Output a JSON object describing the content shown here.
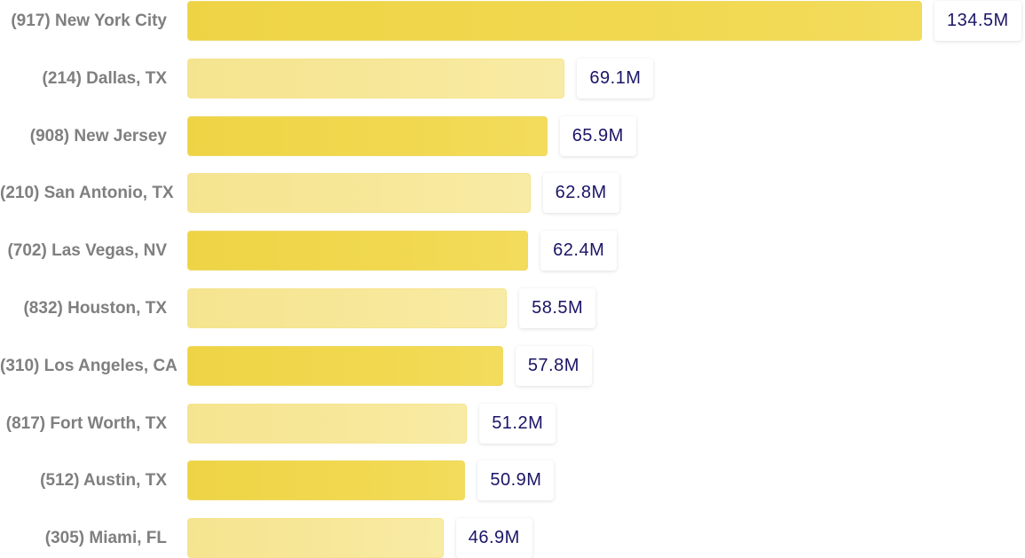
{
  "chart_data": {
    "type": "bar",
    "orientation": "horizontal",
    "title": "",
    "xlabel": "",
    "ylabel": "",
    "categories": [
      "(917) New York City",
      "(214) Dallas, TX",
      "(908) New Jersey",
      "(210) San Antonio, TX",
      "(702) Las Vegas, NV",
      "(832) Houston, TX",
      "(310) Los Angeles, CA",
      "(817) Fort Worth, TX",
      "(512) Austin, TX",
      "(305) Miami, FL"
    ],
    "values": [
      134.5,
      69.1,
      65.9,
      62.8,
      62.4,
      58.5,
      57.8,
      51.2,
      50.9,
      46.9
    ],
    "value_labels": [
      "134.5M",
      "69.1M",
      "65.9M",
      "62.8M",
      "62.4M",
      "58.5M",
      "57.8M",
      "51.2M",
      "50.9M",
      "46.9M"
    ],
    "xlim": [
      0,
      134.5
    ],
    "grid": false,
    "legend": "none",
    "colors": {
      "bar_dark": "#f0d64a",
      "bar_light": "#f7e89a",
      "category_label": "#7f7f7f",
      "value_label": "#1a1566"
    }
  }
}
